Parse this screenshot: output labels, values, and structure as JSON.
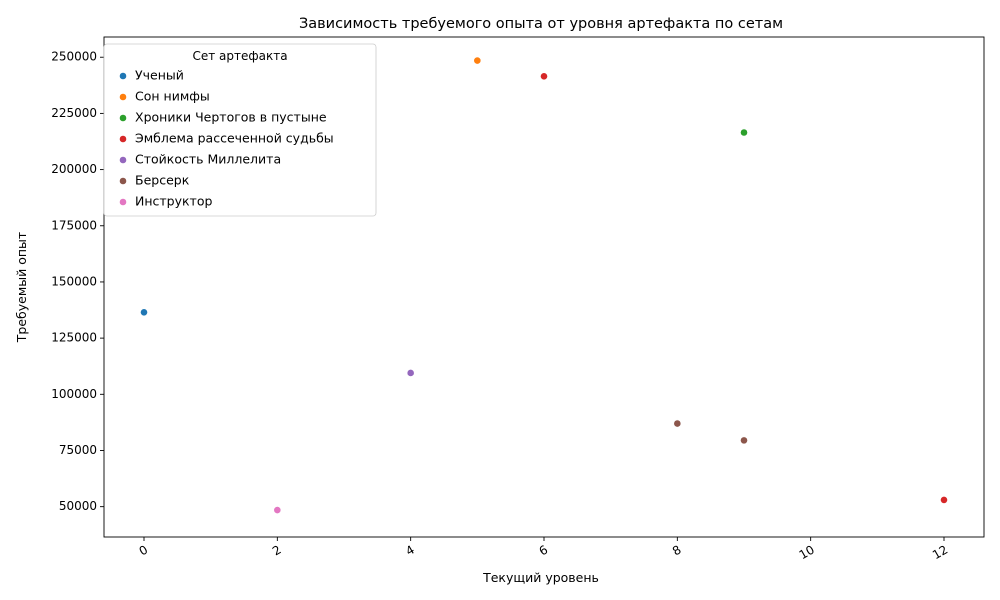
{
  "chart_data": {
    "type": "scatter",
    "title": "Зависимость требуемого опыта от уровня артефакта по сетам",
    "xlabel": "Текущий уровень",
    "ylabel": "Требуемый опыт",
    "xlim": [
      -0.6,
      12.6
    ],
    "ylim": [
      36500,
      259000
    ],
    "xticks": [
      0,
      2,
      4,
      6,
      8,
      10,
      12
    ],
    "yticks": [
      50000,
      75000,
      100000,
      125000,
      150000,
      175000,
      200000,
      225000,
      250000
    ],
    "grid": false,
    "legend": {
      "title": "Сет артефакта",
      "placement": "top-left"
    },
    "series": [
      {
        "name": "Ученый",
        "color": "#1f77b4",
        "points": [
          [
            0,
            136500
          ]
        ]
      },
      {
        "name": "Сон нимфы",
        "color": "#ff7f0e",
        "points": [
          [
            5,
            248500
          ]
        ]
      },
      {
        "name": "Хроники Чертогов в пустыне",
        "color": "#2ca02c",
        "points": [
          [
            9,
            216500
          ]
        ]
      },
      {
        "name": "Эмблема рассеченной судьбы",
        "color": "#d62728",
        "points": [
          [
            6,
            241500
          ],
          [
            12,
            53000
          ]
        ]
      },
      {
        "name": "Стойкость Миллелита",
        "color": "#9467bd",
        "points": [
          [
            4,
            109500
          ]
        ]
      },
      {
        "name": "Берсерк",
        "color": "#8c564b",
        "points": [
          [
            8,
            87000
          ],
          [
            9,
            79500
          ]
        ]
      },
      {
        "name": "Инструктор",
        "color": "#e377c2",
        "points": [
          [
            2,
            48500
          ]
        ]
      }
    ]
  }
}
